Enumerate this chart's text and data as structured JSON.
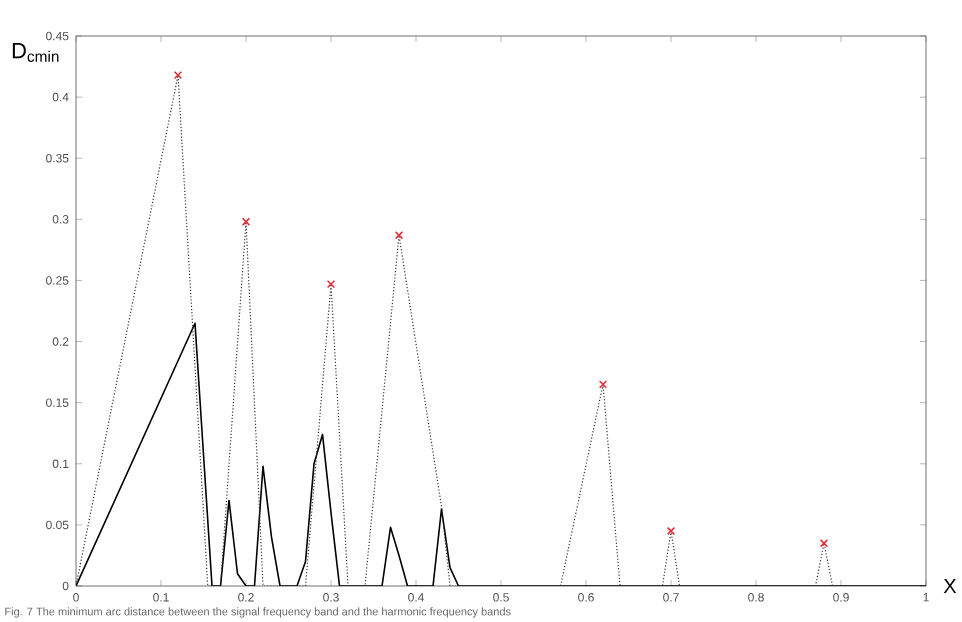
{
  "chart_data": {
    "type": "line",
    "ylabel": "D$_{cmin}$",
    "xlabel": "X",
    "xlim": [
      0,
      1
    ],
    "ylim": [
      0,
      0.45
    ],
    "xticks": [
      0,
      0.1,
      0.2,
      0.3,
      0.4,
      0.5,
      0.6,
      0.7,
      0.8,
      0.9,
      1
    ],
    "yticks": [
      0,
      0.05,
      0.1,
      0.15,
      0.2,
      0.25,
      0.3,
      0.35,
      0.4,
      0.45
    ],
    "grid": false,
    "series": [
      {
        "color": "#000000",
        "line_style": "solid",
        "marker": "none",
        "x": [
          0,
          0.14,
          0.16,
          0.17,
          0.18,
          0.19,
          0.2,
          0.21,
          0.22,
          0.23,
          0.24,
          0.26,
          0.27,
          0.28,
          0.29,
          0.3,
          0.31,
          0.36,
          0.37,
          0.38,
          0.39,
          0.42,
          0.43,
          0.44,
          0.45,
          1
        ],
        "values": [
          0,
          0.215,
          0,
          0,
          0.07,
          0.01,
          0,
          0,
          0.098,
          0.04,
          0,
          0,
          0.02,
          0.1,
          0.124,
          0.06,
          0,
          0,
          0.048,
          0.025,
          0,
          0,
          0.063,
          0.015,
          0,
          0
        ]
      },
      {
        "color": "#333333",
        "line_style": "dotted",
        "marker": "none",
        "x": [
          0,
          0.12,
          0.155,
          0.17,
          0.2,
          0.22,
          0.27,
          0.3,
          0.32,
          0.34,
          0.38,
          0.43,
          0.44,
          0.57,
          0.62,
          0.64,
          0.69,
          0.7,
          0.71,
          0.87,
          0.88,
          0.89,
          1
        ],
        "values": [
          0,
          0.418,
          0,
          0,
          0.298,
          0,
          0,
          0.247,
          0,
          0,
          0.287,
          0.065,
          0,
          0,
          0.165,
          0,
          0,
          0.045,
          0,
          0,
          0.035,
          0,
          0
        ]
      },
      {
        "type": "scatter",
        "color": "#e0303a",
        "marker": "cross",
        "x": [
          0.12,
          0.2,
          0.3,
          0.38,
          0.62,
          0.7,
          0.88
        ],
        "values": [
          0.418,
          0.298,
          0.247,
          0.287,
          0.165,
          0.045,
          0.035
        ]
      }
    ],
    "annotations": [
      "Fig. 7 The minimum arc distance between the signal frequency band and the harmonic frequency bands"
    ]
  }
}
